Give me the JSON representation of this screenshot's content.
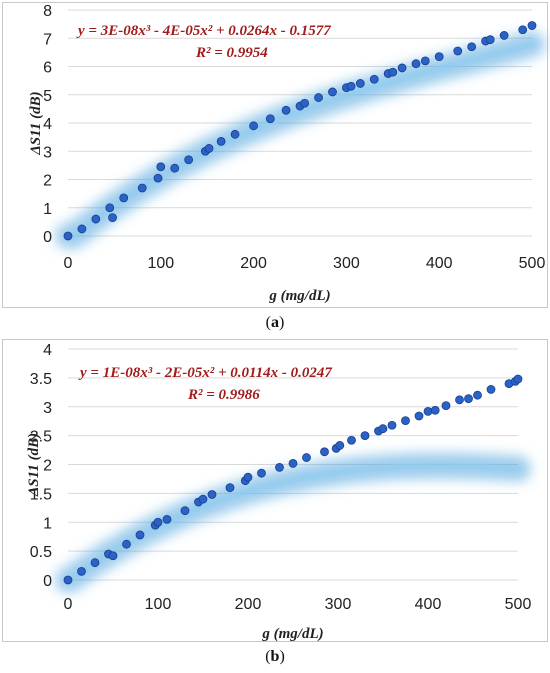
{
  "chart_data": [
    {
      "type": "scatter",
      "panel_label": "(a)",
      "panel_letter": "a",
      "equation": "y = 3E-08x³ - 4E-05x² + 0.0264x - 0.1577",
      "r2": "R² = 0.9954",
      "xlabel": "g (mg/dL)",
      "ylabel": "ΔS11 (dB)",
      "xlim": [
        0,
        500
      ],
      "ylim": [
        0,
        8
      ],
      "xticks": [
        "0",
        "100",
        "200",
        "300",
        "400",
        "500"
      ],
      "yticks": [
        "0",
        "1",
        "2",
        "3",
        "4",
        "5",
        "6",
        "7",
        "8"
      ],
      "grid": "horizontal",
      "trendline": {
        "type": "poly3",
        "coefficients": [
          3e-08,
          -4e-05,
          0.0264,
          -0.1577
        ]
      },
      "series": [
        {
          "x": [
            0,
            15,
            30,
            45,
            48,
            60,
            80,
            97,
            100,
            115,
            130,
            148,
            152,
            165,
            180,
            200,
            218,
            235,
            250,
            255,
            270,
            285,
            300,
            305,
            315,
            330,
            345,
            350,
            360,
            375,
            385,
            400,
            420,
            435,
            450,
            455,
            470,
            490,
            500
          ],
          "y": [
            0,
            0.25,
            0.6,
            1.0,
            0.65,
            1.35,
            1.7,
            2.05,
            2.45,
            2.4,
            2.7,
            3.0,
            3.1,
            3.35,
            3.6,
            3.9,
            4.15,
            4.45,
            4.6,
            4.7,
            4.9,
            5.1,
            5.25,
            5.3,
            5.4,
            5.55,
            5.75,
            5.8,
            5.95,
            6.1,
            6.2,
            6.35,
            6.55,
            6.7,
            6.9,
            6.95,
            7.1,
            7.3,
            7.45
          ]
        }
      ]
    },
    {
      "type": "scatter",
      "panel_label": "(b)",
      "panel_letter": "b",
      "equation": "y = 1E-08x³ - 2E-05x² + 0.0114x - 0.0247",
      "r2": "R² = 0.9986",
      "xlabel": "g (mg/dL)",
      "ylabel": "ΔS11 (dB)",
      "xlim": [
        0,
        500
      ],
      "ylim": [
        0,
        4
      ],
      "xticks": [
        "0",
        "100",
        "200",
        "300",
        "400",
        "500"
      ],
      "yticks": [
        "0",
        "0.5",
        "1",
        "1.5",
        "2",
        "2.5",
        "3",
        "3.5",
        "4"
      ],
      "grid": "horizontal",
      "trendline": {
        "type": "poly3",
        "coefficients": [
          1e-08,
          -2e-05,
          0.0114,
          -0.0247
        ]
      },
      "series": [
        {
          "x": [
            0,
            15,
            30,
            45,
            50,
            65,
            80,
            97,
            100,
            110,
            130,
            145,
            150,
            160,
            180,
            197,
            200,
            215,
            235,
            250,
            265,
            285,
            298,
            302,
            315,
            330,
            345,
            350,
            360,
            375,
            390,
            400,
            408,
            420,
            435,
            445,
            455,
            470,
            490,
            497,
            500
          ],
          "y": [
            0,
            0.15,
            0.3,
            0.45,
            0.42,
            0.62,
            0.78,
            0.95,
            1.0,
            1.05,
            1.2,
            1.35,
            1.4,
            1.48,
            1.6,
            1.72,
            1.78,
            1.85,
            1.95,
            2.02,
            2.12,
            2.22,
            2.28,
            2.33,
            2.42,
            2.5,
            2.58,
            2.62,
            2.68,
            2.76,
            2.84,
            2.92,
            2.94,
            3.02,
            3.12,
            3.14,
            3.2,
            3.3,
            3.4,
            3.44,
            3.48
          ]
        }
      ]
    }
  ],
  "colors": {
    "marker": "#2a62c8",
    "marker_edge": "#1a3f8a",
    "glow": "#4aa3df",
    "equation": "#a01c1c",
    "grid": "#d9d9d9"
  }
}
